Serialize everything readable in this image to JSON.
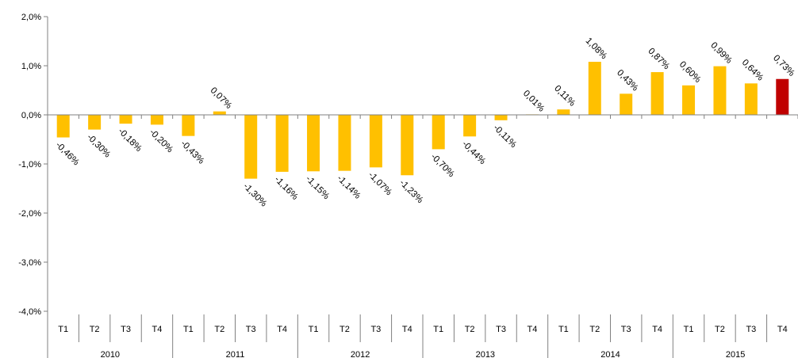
{
  "chart_data": {
    "type": "bar",
    "title": "",
    "xlabel": "",
    "ylabel": "",
    "ylim": [
      -4,
      2
    ],
    "yticks": [
      "2,0%",
      "1,0%",
      "0,0%",
      "-1,0%",
      "-2,0%",
      "-3,0%",
      "-4,0%"
    ],
    "grid": false,
    "legend": "none",
    "colors": {
      "bar": "#FFC000",
      "highlight": "#C00000",
      "axis": "#808080"
    },
    "years": [
      "2010",
      "2011",
      "2012",
      "2013",
      "2014",
      "2015"
    ],
    "quarters": [
      "T1",
      "T2",
      "T3",
      "T4"
    ],
    "values": [
      -0.46,
      -0.3,
      -0.18,
      -0.2,
      -0.43,
      0.07,
      -1.3,
      -1.16,
      -1.15,
      -1.14,
      -1.07,
      -1.23,
      -0.7,
      -0.44,
      -0.11,
      0.01,
      0.11,
      1.08,
      0.43,
      0.87,
      0.6,
      0.99,
      0.64,
      0.73
    ],
    "labels": [
      "-0,46%",
      "-0,30%",
      "-0,18%",
      "-0,20%",
      "-0,43%",
      "0,07%",
      "-1,30%",
      "-1,16%",
      "-1,15%",
      "-1,14%",
      "-1,07%",
      "-1,23%",
      "-0,70%",
      "-0,44%",
      "-0,11%",
      "0,01%",
      "0,11%",
      "1,08%",
      "0,43%",
      "0,87%",
      "0,60%",
      "0,99%",
      "0,64%",
      "0,73%"
    ],
    "highlight_index": 23
  }
}
